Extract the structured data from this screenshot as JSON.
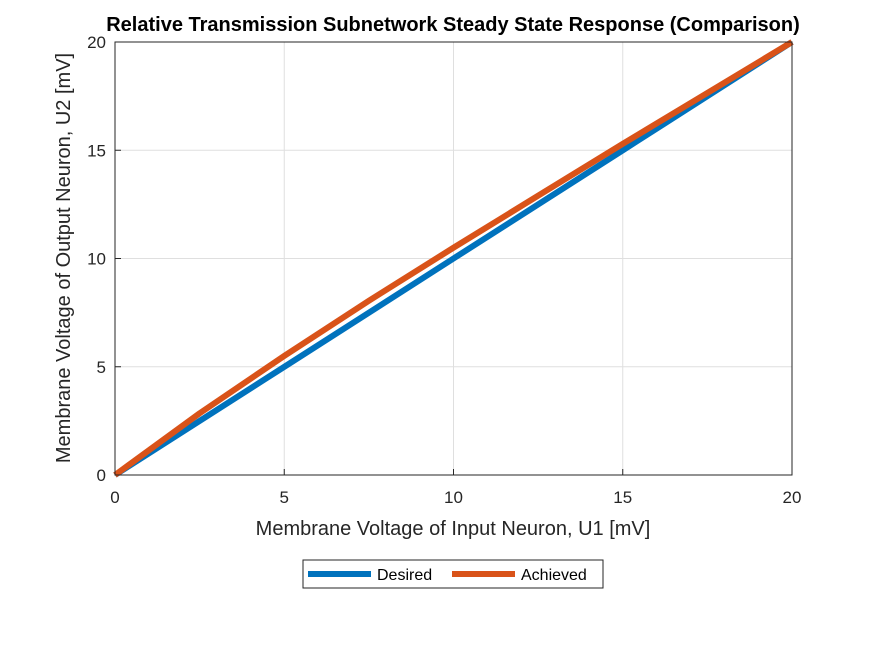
{
  "chart_data": {
    "type": "line",
    "title": "Relative Transmission Subnetwork Steady State Response (Comparison)",
    "xlabel": "Membrane Voltage of Input Neuron, U1 [mV]",
    "ylabel": "Membrane Voltage of Output Neuron, U2 [mV]",
    "xlim": [
      0,
      20
    ],
    "ylim": [
      0,
      20
    ],
    "xticks": [
      0,
      5,
      10,
      15,
      20
    ],
    "yticks": [
      0,
      5,
      10,
      15,
      20
    ],
    "grid": true,
    "legend_placement": "bottom-outside",
    "series": [
      {
        "name": "Desired",
        "color": "#0072BD",
        "x": [
          0,
          5,
          10,
          15,
          20
        ],
        "y": [
          0,
          5,
          10,
          15,
          20
        ]
      },
      {
        "name": "Achieved",
        "color": "#D95319",
        "x": [
          0,
          2.5,
          5,
          7.5,
          10,
          12.5,
          15,
          17.5,
          20
        ],
        "y": [
          0,
          2.85,
          5.5,
          8.05,
          10.5,
          12.9,
          15.3,
          17.65,
          20
        ]
      }
    ]
  }
}
